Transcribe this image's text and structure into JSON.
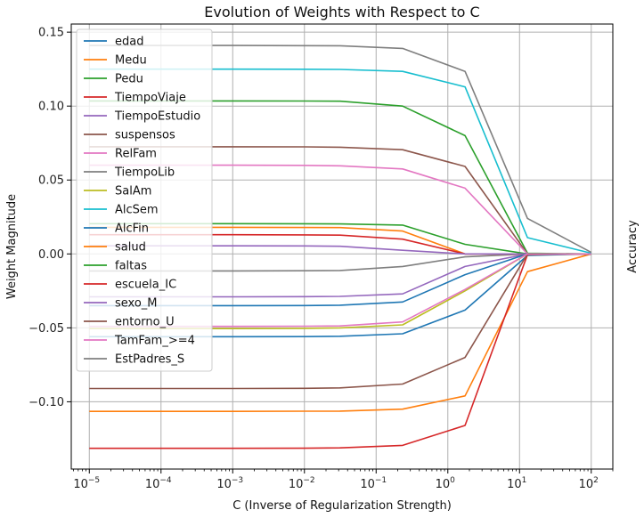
{
  "chart_data": {
    "type": "line",
    "title": "Evolution of Weights with Respect to C",
    "xlabel": "C (Inverse of Regularization Strength)",
    "ylabel": "Weight Magnitude",
    "right_ylabel": "Accuracy",
    "x_scale": "log",
    "x": [
      1e-05,
      0.0001,
      0.001,
      0.01,
      0.0316,
      0.234,
      1.74,
      12.9,
      100
    ],
    "xlim": [
      5.6e-06,
      200
    ],
    "ylim": [
      -0.1455,
      0.1555
    ],
    "x_ticks": [
      1e-05,
      0.0001,
      0.001,
      0.01,
      0.1,
      1,
      10,
      100
    ],
    "x_tick_labels": [
      "10^-5",
      "10^-4",
      "10^-3",
      "10^-2",
      "10^-1",
      "10^0",
      "10^1",
      "10^2"
    ],
    "y_ticks": [
      -0.1,
      -0.05,
      0.0,
      0.05,
      0.1,
      0.15
    ],
    "y_tick_labels": [
      "−0.10",
      "−0.05",
      "0.00",
      "0.05",
      "0.10",
      "0.15"
    ],
    "grid": true,
    "legend_position": "upper-left",
    "series": [
      {
        "name": "edad",
        "color": "#1f77b4",
        "values": [
          -0.056,
          -0.056,
          -0.056,
          -0.0559,
          -0.0557,
          -0.054,
          -0.038,
          -0.001,
          0.0
        ]
      },
      {
        "name": "Medu",
        "color": "#ff7f0e",
        "values": [
          -0.1065,
          -0.1065,
          -0.1065,
          -0.1064,
          -0.1063,
          -0.105,
          -0.096,
          -0.012,
          0.0
        ]
      },
      {
        "name": "Pedu",
        "color": "#2ca02c",
        "values": [
          0.1035,
          0.1035,
          0.1035,
          0.1034,
          0.1033,
          0.1,
          0.08,
          0.0005,
          0.0
        ]
      },
      {
        "name": "TiempoViaje",
        "color": "#d62728",
        "values": [
          -0.1315,
          -0.1315,
          -0.1315,
          -0.1314,
          -0.1312,
          -0.1295,
          -0.116,
          -0.0005,
          0.0
        ]
      },
      {
        "name": "TiempoEstudio",
        "color": "#9467bd",
        "values": [
          -0.029,
          -0.029,
          -0.029,
          -0.0289,
          -0.0287,
          -0.027,
          -0.0085,
          0.0,
          0.0
        ]
      },
      {
        "name": "suspensos",
        "color": "#8c564b",
        "values": [
          0.0725,
          0.0725,
          0.0725,
          0.0724,
          0.0722,
          0.0705,
          0.0592,
          0.0,
          0.0
        ]
      },
      {
        "name": "RelFam",
        "color": "#e377c2",
        "values": [
          0.06,
          0.06,
          0.06,
          0.0599,
          0.0596,
          0.0575,
          0.0445,
          0.0,
          0.0
        ]
      },
      {
        "name": "TiempoLib",
        "color": "#7f7f7f",
        "values": [
          -0.0115,
          -0.0115,
          -0.0115,
          -0.0114,
          -0.0112,
          -0.0085,
          -0.002,
          0.0,
          0.0
        ]
      },
      {
        "name": "SalAm",
        "color": "#bcbd22",
        "values": [
          -0.0505,
          -0.0505,
          -0.0505,
          -0.0503,
          -0.05,
          -0.048,
          -0.025,
          0.0,
          0.0
        ]
      },
      {
        "name": "AlcSem",
        "color": "#17becf",
        "values": [
          0.125,
          0.125,
          0.125,
          0.1249,
          0.1248,
          0.1235,
          0.113,
          0.011,
          0.0005
        ]
      },
      {
        "name": "AlcFin",
        "color": "#1f77b4",
        "values": [
          -0.035,
          -0.035,
          -0.035,
          -0.0349,
          -0.0347,
          -0.0325,
          -0.014,
          0.0,
          0.0
        ]
      },
      {
        "name": "salud",
        "color": "#ff7f0e",
        "values": [
          0.018,
          0.018,
          0.018,
          0.0179,
          0.0178,
          0.0155,
          0.0,
          0.0,
          0.0
        ]
      },
      {
        "name": "faltas",
        "color": "#2ca02c",
        "values": [
          0.0205,
          0.0205,
          0.0205,
          0.0204,
          0.0203,
          0.0195,
          0.0065,
          0.0,
          0.0
        ]
      },
      {
        "name": "escuela_IC",
        "color": "#d62728",
        "values": [
          0.013,
          0.013,
          0.013,
          0.0129,
          0.0127,
          0.01,
          0.0,
          0.0,
          0.0
        ]
      },
      {
        "name": "sexo_M",
        "color": "#9467bd",
        "values": [
          0.0055,
          0.0055,
          0.0055,
          0.0054,
          0.0052,
          0.0025,
          0.0,
          0.0,
          0.0
        ]
      },
      {
        "name": "entorno_U",
        "color": "#8c564b",
        "values": [
          -0.091,
          -0.091,
          -0.091,
          -0.0909,
          -0.0906,
          -0.088,
          -0.07,
          0.0,
          0.0
        ]
      },
      {
        "name": "TamFam_>=4",
        "color": "#e377c2",
        "values": [
          -0.049,
          -0.049,
          -0.049,
          -0.0489,
          -0.0487,
          -0.046,
          -0.024,
          0.0,
          0.0
        ]
      },
      {
        "name": "EstPadres_S",
        "color": "#7f7f7f",
        "values": [
          0.141,
          0.141,
          0.141,
          0.1409,
          0.1408,
          0.139,
          0.1235,
          0.024,
          0.001
        ]
      }
    ]
  }
}
